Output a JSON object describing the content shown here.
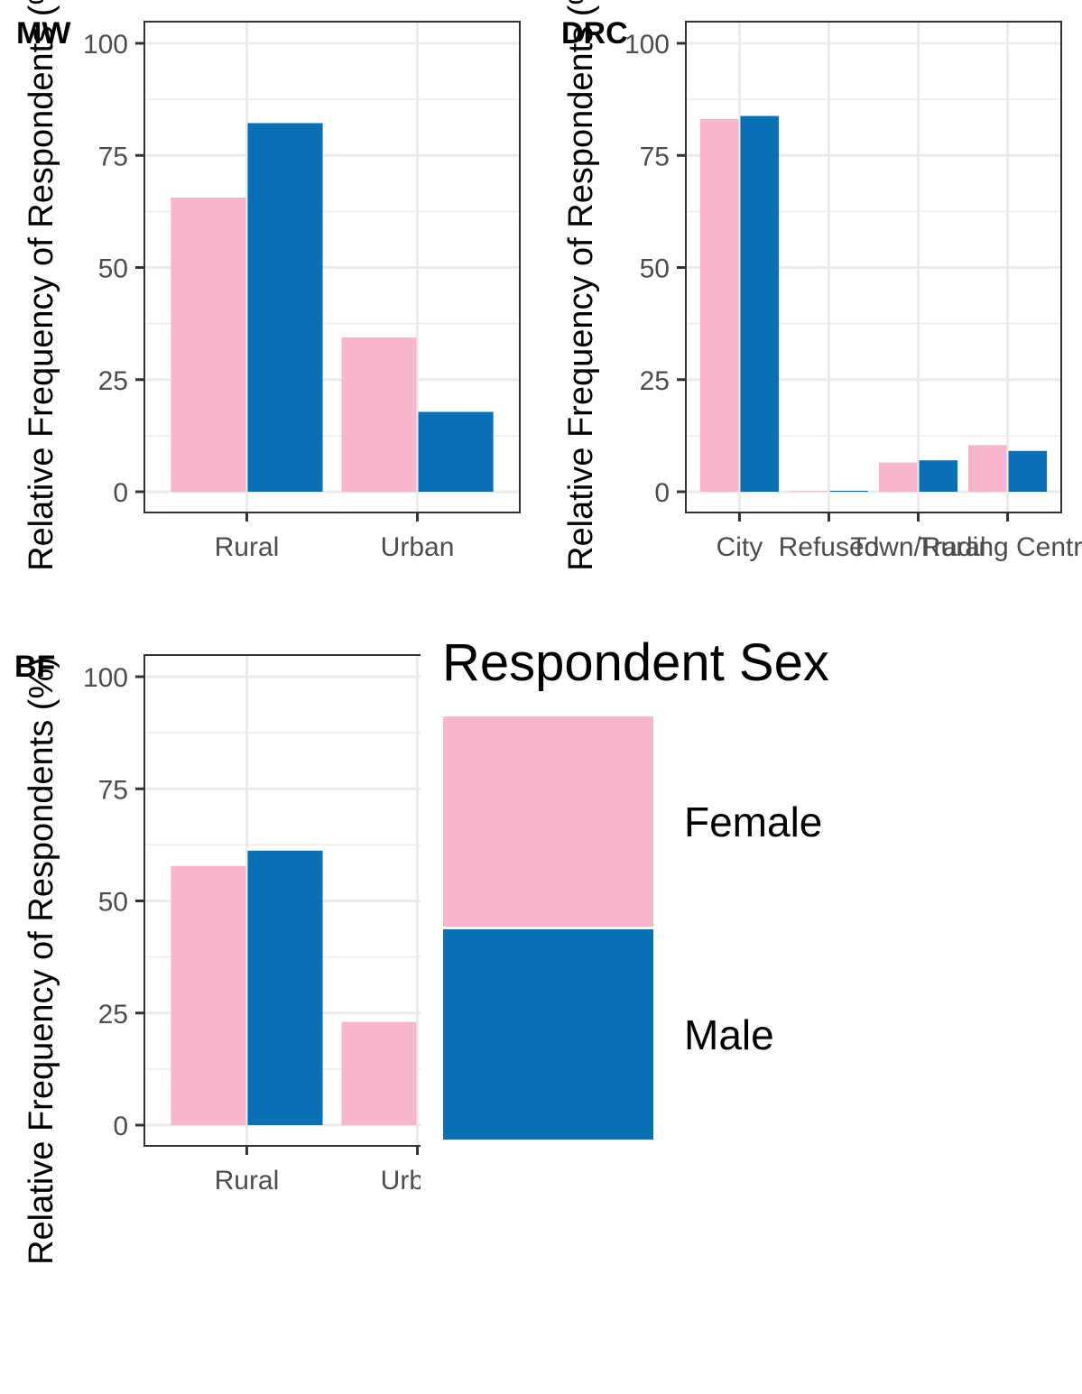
{
  "chart_data": [
    {
      "type": "bar",
      "tag": "MW",
      "ylabel": "Relative Frequency of Respondents (%)",
      "categories": [
        "Rural",
        "Urban"
      ],
      "ylim": [
        0,
        100
      ],
      "yticks": [
        "0",
        "25",
        "50",
        "75",
        "100"
      ],
      "grid": true,
      "series": [
        {
          "name": "Female",
          "values": [
            65.6,
            34.4
          ]
        },
        {
          "name": "Male",
          "values": [
            82.2,
            17.8
          ]
        }
      ]
    },
    {
      "type": "bar",
      "tag": "DRC",
      "ylabel": "Relative Frequency of Respondents (%)",
      "categories": [
        "City",
        "Refused",
        "Town/Rural",
        "Trading Centre"
      ],
      "ylim": [
        0,
        100
      ],
      "yticks": [
        "0",
        "25",
        "50",
        "75",
        "100"
      ],
      "grid": true,
      "series": [
        {
          "name": "Female",
          "values": [
            83.1,
            0,
            6.5,
            10.4
          ]
        },
        {
          "name": "Male",
          "values": [
            83.8,
            0.2,
            7.0,
            9.1
          ]
        }
      ]
    },
    {
      "type": "bar",
      "tag": "BF",
      "ylabel": "Relative Frequency of Respondents (%)",
      "categories": [
        "Rural",
        "Urban"
      ],
      "ylim": [
        0,
        100
      ],
      "yticks": [
        "0",
        "25",
        "50",
        "75",
        "100"
      ],
      "grid": true,
      "series": [
        {
          "name": "Female",
          "values": [
            57.8,
            23.0
          ]
        },
        {
          "name": "Male",
          "values": [
            61.2,
            null
          ]
        }
      ]
    }
  ],
  "legend": {
    "title": "Respondent Sex",
    "items": [
      {
        "label": "Female",
        "color": "#F8B6CE"
      },
      {
        "label": "Male",
        "color": "#0870B6"
      }
    ]
  },
  "colors": {
    "female": "#F8B6CE",
    "male": "#0870B6",
    "grid": "#EBEBEB",
    "panel_border": "#333333"
  }
}
